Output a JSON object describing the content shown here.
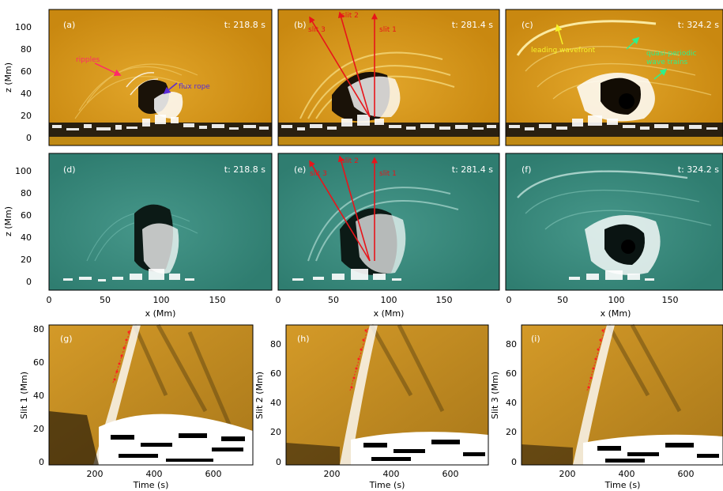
{
  "top_row": {
    "ylabel": "z (Mm)",
    "panels": [
      {
        "id": "a",
        "label": "(a)",
        "time": "t: 218.8 s",
        "annotations": [
          {
            "text": "ripples",
            "color": "#ff2a6a"
          },
          {
            "text": "flux rope",
            "color": "#5a2bd6"
          }
        ]
      },
      {
        "id": "b",
        "label": "(b)",
        "time": "t: 281.4 s",
        "slits": [
          "slit 3",
          "slit 2",
          "slit 1"
        ]
      },
      {
        "id": "c",
        "label": "(c)",
        "time": "t: 324.2 s",
        "annotations": [
          {
            "text": "leading wavefront",
            "color": "#f6f22a"
          },
          {
            "text": "quasi-periodic",
            "color": "#2ef08a"
          },
          {
            "text": "wave trains",
            "color": "#2ef08a"
          }
        ]
      }
    ],
    "yticks": [
      "0",
      "20",
      "40",
      "60",
      "80",
      "100"
    ]
  },
  "middle_row": {
    "ylabel": "z (Mm)",
    "xlabel": "x (Mm)",
    "panels": [
      {
        "id": "d",
        "label": "(d)",
        "time": "t: 218.8 s"
      },
      {
        "id": "e",
        "label": "(e)",
        "time": "t: 281.4 s",
        "slits": [
          "slit 3",
          "slit 2",
          "slit 1"
        ]
      },
      {
        "id": "f",
        "label": "(f)",
        "time": "t: 324.2 s"
      }
    ],
    "yticks": [
      "0",
      "20",
      "40",
      "60",
      "80",
      "100"
    ],
    "xticks": [
      "0",
      "50",
      "100",
      "150"
    ]
  },
  "bottom_row": {
    "xlabel": "Time (s)",
    "panels": [
      {
        "id": "g",
        "label": "(g)",
        "ylabel": "Slit 1 (Mm)",
        "yticks": [
          "0",
          "20",
          "40",
          "60",
          "80"
        ]
      },
      {
        "id": "h",
        "label": "(h)",
        "ylabel": "Slit 2 (Mm)",
        "yticks": [
          "0",
          "20",
          "40",
          "60",
          "80"
        ]
      },
      {
        "id": "i",
        "label": "(i)",
        "ylabel": "Slit 3 (Mm)",
        "yticks": [
          "0",
          "20",
          "40",
          "60",
          "80"
        ]
      }
    ],
    "xticks": [
      "200",
      "400",
      "600"
    ]
  },
  "colors": {
    "gold_bg": "#d89a1a",
    "teal_bg": "#3a8a7c",
    "slit_red": "#e8141a",
    "fit_red": "#ff2020",
    "label_white": "#ffffff"
  }
}
